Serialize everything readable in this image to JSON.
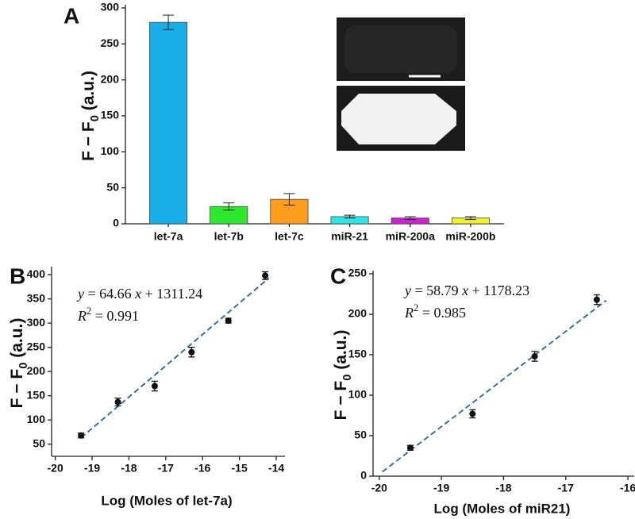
{
  "chart_data": [
    {
      "type": "bar",
      "panel": "A",
      "ylabel": [
        "F − F",
        "0",
        " (a.u.)"
      ],
      "categories": [
        "let-7a",
        "let-7b",
        "let-7c",
        "miR-21",
        "miR-200a",
        "miR-200b"
      ],
      "values": [
        280,
        24,
        34,
        10,
        8,
        8
      ],
      "errors": [
        10,
        5,
        8,
        2,
        2,
        2
      ],
      "colors": [
        "#1aaee8",
        "#2ee82e",
        "#ff9d1f",
        "#2ee6e6",
        "#d21fd2",
        "#f2f224"
      ],
      "ylim": [
        0,
        300
      ],
      "yticks": [
        0,
        50,
        100,
        150,
        200,
        250,
        300
      ]
    },
    {
      "type": "scatter",
      "panel": "B",
      "ylabel": [
        "F − F",
        "0",
        " (a.u.)"
      ],
      "xlabel": "Log (Moles of let-7a)",
      "equation": [
        "y",
        " = 64.66 ",
        "x",
        " + 1311.24"
      ],
      "r2": [
        "R",
        "2",
        " = 0.991"
      ],
      "x": [
        -19.3,
        -18.3,
        -17.3,
        -16.3,
        -15.3,
        -14.3
      ],
      "values": [
        68,
        137,
        170,
        240,
        305,
        398
      ],
      "errors": [
        5,
        8,
        10,
        10,
        5,
        8
      ],
      "color": "#111111",
      "fit": {
        "x": [
          -19.3,
          -14.2
        ],
        "values": [
          63.3,
          393.1
        ],
        "color": "#3a6ea5"
      },
      "xlim": [
        -20.1,
        -13.85
      ],
      "xticks": [
        -20,
        -19,
        -18,
        -17,
        -16,
        -15,
        -14
      ],
      "ylim": [
        25,
        410
      ],
      "yticks": [
        50,
        100,
        150,
        200,
        250,
        300,
        350,
        400
      ]
    },
    {
      "type": "scatter",
      "panel": "C",
      "ylabel": [
        "F − F",
        "0",
        " (a.u.)"
      ],
      "xlabel": "Log (Moles of miR21)",
      "equation": [
        "y",
        " = 58.79 ",
        "x",
        " + 1178.23"
      ],
      "r2": [
        "R",
        "2",
        " = 0.985"
      ],
      "x": [
        -19.5,
        -18.5,
        -17.5,
        -16.5
      ],
      "values": [
        35,
        77,
        148,
        218
      ],
      "errors": [
        3,
        5,
        6,
        6
      ],
      "color": "#111111",
      "fit": {
        "x": [
          -19.95,
          -16.35
        ],
        "values": [
          5.4,
          217.0
        ],
        "color": "#3a6ea5"
      },
      "xlim": [
        -20.1,
        -15.95
      ],
      "xticks": [
        -20,
        -19,
        -18,
        -17,
        -16
      ],
      "ylim": [
        0,
        250
      ],
      "yticks": [
        0,
        50,
        100,
        150,
        200,
        250
      ]
    }
  ]
}
